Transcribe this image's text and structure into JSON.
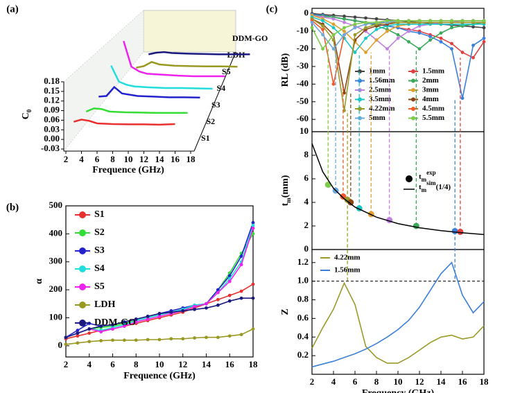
{
  "chart_data": [
    {
      "type": "waterfall",
      "panel_label": "(a)",
      "xlabel": "Frequence (GHz)",
      "ylabel": {
        "base": "C",
        "sub": "0"
      },
      "xlim": [
        2,
        18
      ],
      "xticks": [
        2,
        4,
        6,
        8,
        10,
        12,
        14,
        16,
        18
      ],
      "ylim": [
        -0.03,
        0.18
      ],
      "yticks": [
        -0.03,
        {
          "value": 0,
          "label": "0.00"
        },
        0.03,
        0.06,
        0.09,
        0.12,
        0.15,
        0.18
      ],
      "x": [
        3,
        4,
        5,
        6,
        8,
        10,
        12,
        14,
        16
      ],
      "series": [
        {
          "name": "S1",
          "color": "#e8312f",
          "values": [
            0.055,
            0.062,
            0.058,
            0.05,
            0.048,
            0.047,
            0.047,
            0.046,
            0.048
          ]
        },
        {
          "name": "S2",
          "color": "#33dd33",
          "values": [
            0.05,
            0.06,
            0.058,
            0.05,
            0.048,
            0.047,
            0.046,
            0.046,
            0.046
          ]
        },
        {
          "name": "S3",
          "color": "#2222cc",
          "values": [
            0.06,
            0.062,
            0.09,
            0.07,
            0.062,
            0.06,
            0.058,
            0.058,
            0.057
          ]
        },
        {
          "name": "S4",
          "color": "#22dddd",
          "values": [
            0.12,
            0.07,
            0.06,
            0.055,
            0.052,
            0.05,
            0.05,
            0.049,
            0.048
          ]
        },
        {
          "name": "S5",
          "color": "#ee22ee",
          "values": [
            0.16,
            0.08,
            0.065,
            0.058,
            0.055,
            0.052,
            0.05,
            0.05,
            0.05
          ]
        },
        {
          "name": "LDH",
          "color": "#999922",
          "values": [
            0.04,
            0.045,
            0.058,
            0.05,
            0.046,
            0.045,
            0.044,
            0.044,
            0.043
          ]
        },
        {
          "name": "DDM-GO",
          "color": "#1a1a80",
          "values": [
            0.045,
            0.05,
            0.052,
            0.049,
            0.047,
            0.046,
            0.045,
            0.045,
            0.045
          ]
        }
      ]
    },
    {
      "type": "line",
      "panel_label": "(b)",
      "xlabel": "Frequence (GHz)",
      "ylabel": "α",
      "xlim": [
        2,
        18
      ],
      "xticks": [
        2,
        4,
        6,
        8,
        10,
        12,
        14,
        16,
        18
      ],
      "ylim": [
        -40,
        500
      ],
      "yticks": [
        0,
        100,
        200,
        300,
        400,
        500
      ],
      "markers": true,
      "x": [
        2,
        3,
        4,
        5,
        6,
        7,
        8,
        9,
        10,
        11,
        12,
        13,
        14,
        15,
        16,
        17,
        18
      ],
      "series": [
        {
          "name": "S1",
          "color": "#e8312f",
          "values": [
            25,
            35,
            45,
            55,
            60,
            70,
            80,
            90,
            100,
            110,
            120,
            135,
            150,
            165,
            180,
            195,
            220
          ]
        },
        {
          "name": "S2",
          "color": "#33dd33",
          "values": [
            30,
            45,
            60,
            65,
            70,
            80,
            90,
            100,
            110,
            120,
            130,
            140,
            150,
            200,
            260,
            330,
            400
          ]
        },
        {
          "name": "S3",
          "color": "#2222cc",
          "values": [
            30,
            55,
            80,
            70,
            75,
            85,
            95,
            105,
            115,
            125,
            135,
            145,
            150,
            200,
            250,
            320,
            440
          ]
        },
        {
          "name": "S4",
          "color": "#22dddd",
          "values": [
            30,
            45,
            60,
            55,
            65,
            75,
            90,
            100,
            110,
            120,
            130,
            145,
            150,
            190,
            240,
            300,
            430
          ]
        },
        {
          "name": "S5",
          "color": "#ee22ee",
          "values": [
            30,
            45,
            60,
            50,
            60,
            70,
            85,
            95,
            105,
            115,
            125,
            140,
            150,
            190,
            230,
            290,
            420
          ]
        },
        {
          "name": "LDH",
          "color": "#999922",
          "values": [
            5,
            10,
            15,
            18,
            20,
            20,
            20,
            22,
            22,
            25,
            25,
            28,
            30,
            30,
            35,
            40,
            60
          ]
        },
        {
          "name": "DDM-GO",
          "color": "#1a1a80",
          "values": [
            30,
            45,
            60,
            70,
            75,
            85,
            95,
            105,
            115,
            120,
            125,
            130,
            135,
            145,
            160,
            170,
            170
          ]
        }
      ]
    },
    {
      "type": "line",
      "panel_label": "(c)",
      "ylabel": "RL (dB)",
      "xlim": [
        2,
        18
      ],
      "ylim": [
        -67,
        3
      ],
      "yticks": [
        -60,
        -50,
        -40,
        -30,
        -20,
        -10,
        0
      ],
      "markers": true,
      "x": [
        2,
        3,
        4,
        5,
        6,
        7,
        8,
        9,
        10,
        11,
        12,
        13,
        14,
        15,
        16,
        17,
        18
      ],
      "series": [
        {
          "name": "1mm",
          "color": "#444444",
          "values": [
            0,
            -0.5,
            -1,
            -1.5,
            -2,
            -2.5,
            -3,
            -3.5,
            -4,
            -4.5,
            -5,
            -5.5,
            -6,
            -6.5,
            -7,
            -7.5,
            -8
          ]
        },
        {
          "name": "1.5mm",
          "color": "#e04040",
          "values": [
            -0.5,
            -1,
            -2,
            -3,
            -4,
            -5,
            -6,
            -7,
            -8,
            -9,
            -10,
            -12,
            -14,
            -17,
            -22,
            -25,
            -16
          ]
        },
        {
          "name": "1.56mm",
          "color": "#3a7fd8",
          "values": [
            -0.5,
            -1,
            -2,
            -3,
            -4,
            -5,
            -6,
            -7,
            -8,
            -10,
            -11,
            -13,
            -16,
            -20,
            -48,
            -18,
            -14
          ]
        },
        {
          "name": "2mm",
          "color": "#3aaa5a",
          "values": [
            -1,
            -1.5,
            -2,
            -3,
            -4,
            -5,
            -7,
            -9,
            -12,
            -16,
            -20,
            -15,
            -11,
            -8,
            -7,
            -6,
            -5
          ]
        },
        {
          "name": "2.5mm",
          "color": "#c080e0",
          "values": [
            -1,
            -2,
            -3,
            -5,
            -7,
            -10,
            -15,
            -20,
            -14,
            -10,
            -7,
            -6,
            -5,
            -5,
            -4,
            -4,
            -4
          ]
        },
        {
          "name": "3mm",
          "color": "#e0a030",
          "values": [
            -1,
            -3,
            -6,
            -10,
            -16,
            -22,
            -15,
            -10,
            -7,
            -6,
            -5,
            -5,
            -5,
            -5,
            -5,
            -5,
            -5
          ]
        },
        {
          "name": "3.5mm",
          "color": "#1bc6c6",
          "values": [
            -2,
            -4,
            -8,
            -14,
            -22,
            -14,
            -9,
            -7,
            -6,
            -6,
            -6,
            -6,
            -6,
            -6,
            -6,
            -6,
            -6
          ]
        },
        {
          "name": "4mm",
          "color": "#8b4513",
          "values": [
            -3,
            -6,
            -12,
            -45,
            -15,
            -9,
            -7,
            -6,
            -5,
            -5,
            -5,
            -5,
            -5,
            -5,
            -5,
            -5,
            -5
          ]
        },
        {
          "name": "4.22mm",
          "color": "#9a9a2a",
          "values": [
            -3,
            -7,
            -15,
            -55,
            -12,
            -8,
            -6,
            -5,
            -5,
            -5,
            -5,
            -5,
            -5,
            -5,
            -5,
            -5,
            -5
          ]
        },
        {
          "name": "4.5mm",
          "color": "#f05a28",
          "values": [
            -4,
            -9,
            -40,
            -12,
            -8,
            -6,
            -5,
            -5,
            -4,
            -4,
            -4,
            -4,
            -4,
            -4,
            -4,
            -4,
            -4
          ]
        },
        {
          "name": "5mm",
          "color": "#6fa8dc",
          "values": [
            -5,
            -12,
            -20,
            -12,
            -8,
            -6,
            -5,
            -5,
            -4,
            -4,
            -4,
            -4,
            -4,
            -4,
            -4,
            -4,
            -4
          ]
        },
        {
          "name": "5.5mm",
          "color": "#7ccc4a",
          "values": [
            -8,
            -20,
            -12,
            -8,
            -6,
            -5,
            -5,
            -4,
            -4,
            -4,
            -4,
            -4,
            -4,
            -4,
            -4,
            -4,
            -4
          ]
        }
      ]
    },
    {
      "type": "scatter",
      "ylabel": {
        "base": "t",
        "sub": "m",
        "unit": "(mm)"
      },
      "xlim": [
        2,
        18
      ],
      "ylim": [
        0,
        10
      ],
      "yticks": [
        0,
        2,
        4,
        6,
        8,
        10
      ],
      "series": [
        {
          "name": {
            "base": "t",
            "sub": "m",
            "sup": "exp"
          },
          "color": "#000000",
          "mode": "markers",
          "x": [
            3.5,
            4.2,
            4.9,
            5.3,
            5.6,
            6.4,
            7.5,
            9.2,
            11.7,
            15.3,
            15.8
          ],
          "values": [
            5.5,
            5,
            4.5,
            4.22,
            4,
            3.5,
            3,
            2.5,
            2,
            1.56,
            1.5
          ],
          "point_colors": [
            "#7ccc4a",
            "#6fa8dc",
            "#f05a28",
            "#9a9a2a",
            "#8b4513",
            "#1bc6c6",
            "#e0a030",
            "#c080e0",
            "#3aaa5a",
            "#3a7fd8",
            "#e04040"
          ]
        },
        {
          "name": {
            "base": "t",
            "sub": "m",
            "sup": "sim",
            "suffix": "(1/4)"
          },
          "color": "#000000",
          "mode": "line",
          "x": [
            2,
            3,
            4,
            5,
            6,
            8,
            10,
            12,
            14,
            16,
            18
          ],
          "values": [
            9,
            6.6,
            5.2,
            4.3,
            3.6,
            2.75,
            2.2,
            1.85,
            1.6,
            1.42,
            1.27
          ]
        }
      ]
    },
    {
      "type": "line",
      "xlabel": "Frequency (GHz)",
      "ylabel": "Z",
      "xlim": [
        2,
        18
      ],
      "xticks": [
        2,
        4,
        6,
        8,
        10,
        12,
        14,
        16,
        18
      ],
      "ylim": [
        0,
        1.34
      ],
      "yticks": [
        0.2,
        0.4,
        0.6,
        0.8,
        {
          "value": 1,
          "label": "1.0"
        },
        1.2
      ],
      "reference_line": 1,
      "x": [
        2,
        3,
        4,
        5,
        6,
        7,
        8,
        9,
        10,
        11,
        12,
        13,
        14,
        15,
        16,
        17,
        18
      ],
      "series": [
        {
          "name": "4.22mm",
          "color": "#9a9a2a",
          "values": [
            0.28,
            0.5,
            0.7,
            0.98,
            0.75,
            0.3,
            0.18,
            0.12,
            0.12,
            0.18,
            0.26,
            0.34,
            0.4,
            0.42,
            0.38,
            0.4,
            0.52
          ]
        },
        {
          "name": "1.56mm",
          "color": "#3a7fd8",
          "values": [
            0.08,
            0.11,
            0.14,
            0.18,
            0.22,
            0.27,
            0.33,
            0.4,
            0.48,
            0.58,
            0.72,
            0.9,
            1.08,
            1.2,
            0.85,
            0.66,
            0.78
          ]
        }
      ]
    }
  ]
}
